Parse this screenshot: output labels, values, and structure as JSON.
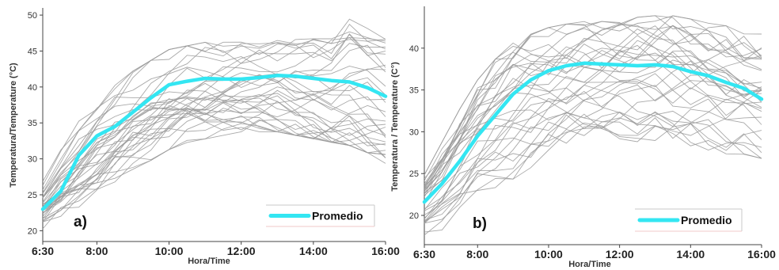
{
  "chart_data": [
    {
      "type": "line",
      "panel_label": "a)",
      "xlabel": "Hora/Time",
      "ylabel": "Temperatura/Temperature (°C)",
      "xticks": [
        "6:30",
        "8:00",
        "10:00",
        "12:00",
        "14:00",
        "16:00"
      ],
      "xtick_values": [
        6.5,
        8,
        10,
        12,
        14,
        16
      ],
      "yticks": [
        20,
        25,
        30,
        35,
        40,
        45,
        50
      ],
      "xlim": [
        6.5,
        16
      ],
      "ylim": [
        18.5,
        51
      ],
      "x": [
        6.5,
        7,
        7.5,
        8,
        8.5,
        9,
        9.5,
        10,
        10.5,
        11,
        11.5,
        12,
        12.5,
        13,
        13.5,
        14,
        14.5,
        15,
        15.5,
        16
      ],
      "average": {
        "name": "Promedio",
        "values": [
          23.0,
          25.5,
          30.5,
          33.2,
          34.5,
          36.5,
          38.5,
          40.3,
          40.8,
          41.2,
          41.1,
          41.1,
          41.3,
          41.6,
          41.5,
          41.2,
          40.9,
          40.7,
          39.9,
          38.7
        ],
        "color": "#33e6f2"
      },
      "individual": {
        "color": "#9a9a9a",
        "min": [
          20.0,
          21.5,
          23.0,
          24.5,
          26.5,
          28.0,
          29.5,
          31.0,
          32.0,
          32.5,
          33.0,
          33.5,
          33.5,
          33.5,
          33.0,
          32.5,
          32.0,
          31.5,
          30.5,
          29.0
        ],
        "max": [
          27.0,
          31.5,
          35.5,
          38.5,
          40.5,
          42.5,
          44.0,
          45.5,
          46.0,
          46.5,
          46.5,
          46.5,
          46.8,
          47.0,
          47.0,
          47.0,
          47.0,
          49.8,
          48.5,
          47.0
        ],
        "count": 34
      },
      "legend": {
        "label": "Promedio",
        "position": "bottom-right"
      }
    },
    {
      "type": "line",
      "panel_label": "b)",
      "xlabel": "Hora/Time",
      "ylabel": "Temperatura / Temperature (C°)",
      "xticks": [
        "6:30",
        "8:00",
        "10:00",
        "12:00",
        "14:00",
        "16:00"
      ],
      "xtick_values": [
        6.5,
        8,
        10,
        12,
        14,
        16
      ],
      "yticks": [
        20,
        25,
        30,
        35,
        40
      ],
      "xlim": [
        6.5,
        16
      ],
      "ylim": [
        16.5,
        45
      ],
      "x": [
        6.5,
        7,
        7.5,
        8,
        8.5,
        9,
        9.5,
        10,
        10.5,
        11,
        11.5,
        12,
        12.5,
        13,
        13.5,
        14,
        14.5,
        15,
        15.5,
        16
      ],
      "average": {
        "name": "Promedio",
        "values": [
          21.6,
          23.8,
          26.5,
          29.5,
          32.0,
          34.5,
          36.2,
          37.3,
          37.9,
          38.2,
          38.1,
          38.0,
          37.9,
          38.0,
          37.8,
          37.2,
          36.7,
          35.9,
          35.2,
          33.9
        ],
        "color": "#33e6f2"
      },
      "individual": {
        "color": "#9a9a9a",
        "min": [
          17.5,
          18.0,
          19.5,
          21.5,
          23.0,
          24.0,
          25.0,
          26.0,
          27.0,
          27.5,
          28.0,
          28.5,
          28.5,
          28.5,
          28.0,
          28.0,
          27.5,
          27.0,
          27.0,
          26.5
        ],
        "max": [
          25.0,
          29.0,
          33.0,
          36.5,
          39.0,
          41.0,
          42.0,
          42.8,
          43.2,
          43.5,
          43.5,
          43.8,
          44.0,
          44.2,
          44.2,
          43.8,
          43.3,
          43.0,
          42.5,
          42.0
        ],
        "count": 34
      },
      "legend": {
        "label": "Promedio",
        "position": "bottom-right"
      }
    }
  ]
}
